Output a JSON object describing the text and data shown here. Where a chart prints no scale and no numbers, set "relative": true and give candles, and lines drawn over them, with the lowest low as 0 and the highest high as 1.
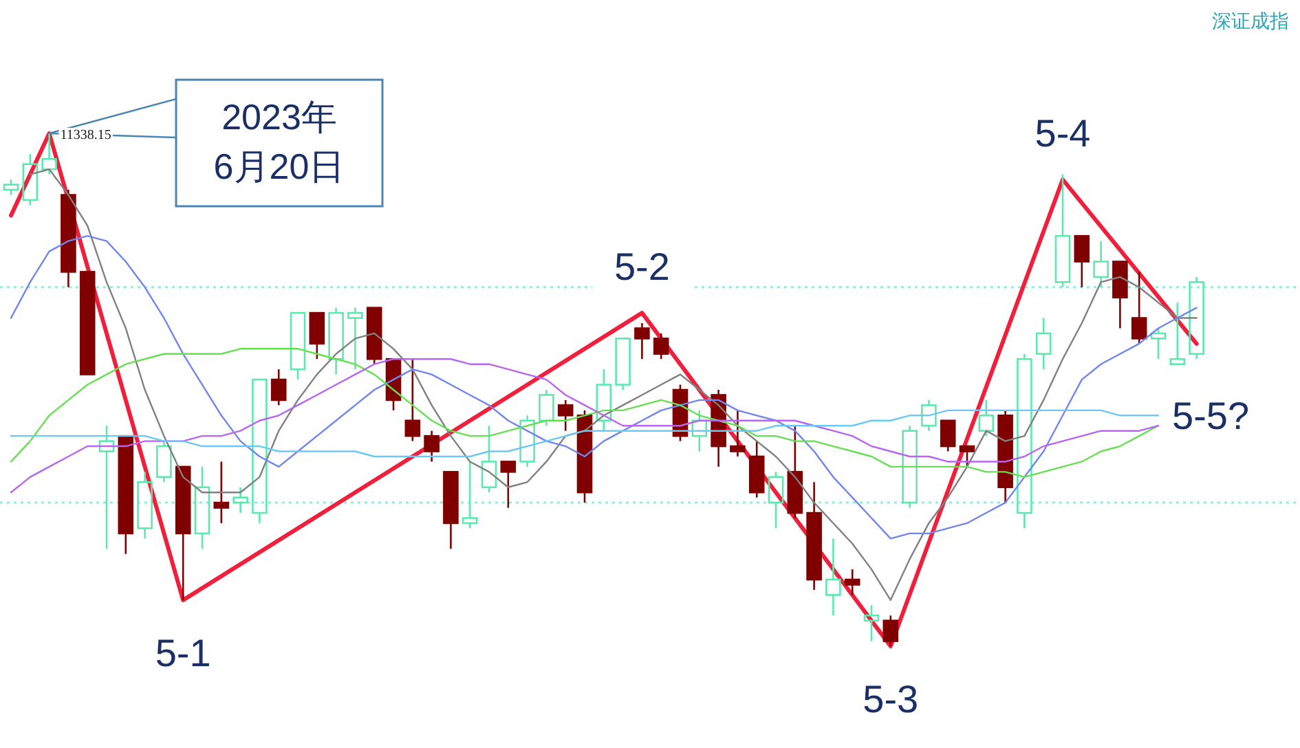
{
  "chart_data": {
    "type": "candlestick",
    "title": "深证成指",
    "relative": true,
    "categories": [
      null,
      null,
      null,
      null,
      null,
      null,
      null,
      null,
      null,
      null,
      null,
      null,
      null,
      null,
      null,
      null,
      null,
      null,
      null,
      null,
      null,
      null,
      null,
      null,
      null,
      null,
      null,
      null,
      null,
      null,
      null,
      null,
      null,
      null,
      null,
      null,
      null,
      null,
      null,
      null,
      null,
      null,
      null,
      null,
      null,
      null,
      null,
      null,
      null,
      null,
      null,
      null,
      null,
      null,
      null,
      null,
      null,
      null,
      null,
      null,
      null,
      null,
      null
    ],
    "ohlc": [
      [
        0.89,
        0.91,
        0.88,
        0.9
      ],
      [
        0.87,
        0.96,
        0.86,
        0.94
      ],
      [
        0.93,
        1.0,
        0.92,
        0.95
      ],
      [
        0.88,
        0.89,
        0.7,
        0.73
      ],
      [
        0.73,
        0.73,
        0.53,
        0.53
      ],
      [
        0.38,
        0.43,
        0.19,
        0.4
      ],
      [
        0.41,
        0.41,
        0.18,
        0.22
      ],
      [
        0.23,
        0.34,
        0.21,
        0.32
      ],
      [
        0.33,
        0.4,
        0.32,
        0.39
      ],
      [
        0.35,
        0.35,
        0.09,
        0.22
      ],
      [
        0.22,
        0.35,
        0.19,
        0.31
      ],
      [
        0.28,
        0.36,
        0.24,
        0.27
      ],
      [
        0.28,
        0.31,
        0.26,
        0.29
      ],
      [
        0.26,
        0.52,
        0.24,
        0.52
      ],
      [
        0.52,
        0.54,
        0.47,
        0.48
      ],
      [
        0.54,
        0.65,
        0.52,
        0.65
      ],
      [
        0.65,
        0.65,
        0.56,
        0.59
      ],
      [
        0.56,
        0.66,
        0.53,
        0.65
      ],
      [
        0.64,
        0.66,
        0.54,
        0.65
      ],
      [
        0.66,
        0.66,
        0.55,
        0.56
      ],
      [
        0.56,
        0.56,
        0.46,
        0.48
      ],
      [
        0.44,
        0.56,
        0.4,
        0.41
      ],
      [
        0.41,
        0.42,
        0.36,
        0.38
      ],
      [
        0.34,
        0.34,
        0.19,
        0.24
      ],
      [
        0.24,
        0.36,
        0.23,
        0.25
      ],
      [
        0.31,
        0.43,
        0.3,
        0.36
      ],
      [
        0.36,
        0.36,
        0.27,
        0.34
      ],
      [
        0.36,
        0.45,
        0.35,
        0.44
      ],
      [
        0.44,
        0.5,
        0.43,
        0.49
      ],
      [
        0.47,
        0.48,
        0.42,
        0.45
      ],
      [
        0.45,
        0.46,
        0.28,
        0.3
      ],
      [
        0.44,
        0.54,
        0.42,
        0.51
      ],
      [
        0.51,
        0.6,
        0.5,
        0.6
      ],
      [
        0.62,
        0.63,
        0.56,
        0.6
      ],
      [
        0.6,
        0.61,
        0.56,
        0.57
      ],
      [
        0.5,
        0.51,
        0.4,
        0.41
      ],
      [
        0.41,
        0.46,
        0.38,
        0.44
      ],
      [
        0.49,
        0.5,
        0.35,
        0.39
      ],
      [
        0.39,
        0.46,
        0.37,
        0.38
      ],
      [
        0.37,
        0.4,
        0.29,
        0.3
      ],
      [
        0.28,
        0.34,
        0.23,
        0.33
      ],
      [
        0.34,
        0.43,
        0.25,
        0.26
      ],
      [
        0.26,
        0.32,
        0.11,
        0.13
      ],
      [
        0.1,
        0.21,
        0.06,
        0.13
      ],
      [
        0.13,
        0.15,
        0.1,
        0.12
      ],
      [
        0.05,
        0.08,
        0.01,
        0.06
      ],
      [
        0.05,
        0.06,
        0.0,
        0.01
      ],
      [
        0.28,
        0.43,
        0.27,
        0.42
      ],
      [
        0.43,
        0.48,
        0.42,
        0.47
      ],
      [
        0.44,
        0.44,
        0.38,
        0.39
      ],
      [
        0.39,
        0.39,
        0.35,
        0.38
      ],
      [
        0.42,
        0.48,
        0.41,
        0.45
      ],
      [
        0.45,
        0.46,
        0.28,
        0.31
      ],
      [
        0.26,
        0.57,
        0.23,
        0.56
      ],
      [
        0.57,
        0.64,
        0.54,
        0.61
      ],
      [
        0.71,
        0.92,
        0.7,
        0.8
      ],
      [
        0.8,
        0.8,
        0.7,
        0.75
      ],
      [
        0.72,
        0.79,
        0.7,
        0.75
      ],
      [
        0.75,
        0.75,
        0.62,
        0.68
      ],
      [
        0.64,
        0.73,
        0.59,
        0.6
      ],
      [
        0.6,
        0.62,
        0.56,
        0.61
      ],
      [
        0.55,
        0.67,
        0.55,
        0.56
      ],
      [
        0.57,
        0.72,
        0.56,
        0.71
      ]
    ],
    "colors": [
      "#5de8b0",
      "#5de8b0",
      "#5de8b0",
      "#800000",
      "#800000",
      "#5de8b0",
      "#800000",
      "#5de8b0",
      "#5de8b0",
      "#800000",
      "#5de8b0",
      "#800000",
      "#5de8b0",
      "#5de8b0",
      "#800000",
      "#5de8b0",
      "#800000",
      "#5de8b0",
      "#5de8b0",
      "#800000",
      "#800000",
      "#800000",
      "#800000",
      "#800000",
      "#5de8b0",
      "#5de8b0",
      "#800000",
      "#5de8b0",
      "#5de8b0",
      "#800000",
      "#800000",
      "#5de8b0",
      "#5de8b0",
      "#800000",
      "#800000",
      "#800000",
      "#5de8b0",
      "#800000",
      "#800000",
      "#800000",
      "#5de8b0",
      "#800000",
      "#800000",
      "#5de8b0",
      "#800000",
      "#5de8b0",
      "#800000",
      "#5de8b0",
      "#5de8b0",
      "#800000",
      "#800000",
      "#5de8b0",
      "#800000",
      "#5de8b0",
      "#5de8b0",
      "#5de8b0",
      "#800000",
      "#5de8b0",
      "#800000",
      "#800000",
      "#5de8b0",
      "#5de8b0",
      "#5de8b0"
    ],
    "value_labels": [
      null,
      null,
      "11338.15",
      null,
      null,
      null,
      null,
      null,
      null,
      null,
      null,
      null,
      null,
      null,
      null,
      null,
      null,
      null,
      null,
      null,
      null,
      null,
      null,
      null,
      null,
      null,
      null,
      null,
      null,
      null,
      null,
      null,
      null,
      null,
      null,
      null,
      null,
      null,
      null,
      null,
      null,
      null,
      null,
      null,
      null,
      null,
      null,
      null,
      null,
      null,
      null,
      null,
      null,
      null,
      null,
      null,
      null,
      null,
      null,
      null,
      null,
      null,
      null
    ],
    "series": [
      {
        "type": "line",
        "color": "#808080",
        "values": [
          null,
          0.92,
          0.93,
          0.88,
          0.82,
          0.71,
          0.62,
          0.5,
          0.41,
          0.33,
          0.3,
          0.3,
          0.3,
          0.33,
          0.42,
          0.48,
          0.53,
          0.57,
          0.6,
          0.61,
          0.58,
          0.54,
          0.47,
          0.41,
          0.36,
          0.34,
          0.31,
          0.32,
          0.36,
          0.41,
          0.42,
          0.45,
          0.47,
          0.49,
          0.51,
          0.53,
          0.5,
          0.47,
          0.43,
          0.4,
          0.37,
          0.33,
          0.28,
          0.24,
          0.2,
          0.15,
          0.09,
          0.17,
          0.24,
          0.29,
          0.35,
          0.42,
          0.4,
          0.41,
          0.48,
          0.56,
          0.63,
          0.71,
          0.72,
          0.7,
          0.67,
          0.64,
          0.64
        ]
      },
      {
        "type": "line",
        "color": "#6f86ee",
        "values": [
          0.64,
          0.71,
          0.77,
          0.79,
          0.8,
          0.79,
          0.75,
          0.7,
          0.64,
          0.57,
          0.51,
          0.45,
          0.4,
          0.37,
          0.35,
          0.38,
          0.41,
          0.44,
          0.47,
          0.5,
          0.52,
          0.54,
          0.53,
          0.51,
          0.49,
          0.47,
          0.44,
          0.42,
          0.4,
          0.39,
          0.37,
          0.4,
          0.42,
          0.44,
          0.46,
          0.47,
          0.48,
          0.48,
          0.46,
          0.45,
          0.44,
          0.42,
          0.38,
          0.33,
          0.29,
          0.25,
          0.21,
          0.22,
          0.22,
          0.23,
          0.24,
          0.26,
          0.28,
          0.33,
          0.38,
          0.45,
          0.52,
          0.55,
          0.57,
          0.59,
          0.62,
          0.64,
          0.66
        ]
      },
      {
        "type": "line",
        "color": "#66e052",
        "values": [
          0.36,
          0.4,
          0.45,
          0.48,
          0.51,
          0.53,
          0.55,
          0.56,
          0.57,
          0.57,
          0.57,
          0.57,
          0.58,
          0.58,
          0.58,
          0.58,
          0.57,
          0.56,
          0.55,
          0.53,
          0.5,
          0.47,
          0.44,
          0.42,
          0.41,
          0.41,
          0.42,
          0.43,
          0.44,
          0.44,
          0.45,
          0.46,
          0.46,
          0.47,
          0.48,
          0.47,
          0.45,
          0.44,
          0.43,
          0.41,
          0.41,
          0.4,
          0.4,
          0.39,
          0.38,
          0.37,
          0.35,
          0.35,
          0.35,
          0.35,
          0.35,
          0.34,
          0.34,
          0.33,
          0.34,
          0.35,
          0.36,
          0.38,
          0.39,
          0.41,
          0.43,
          null,
          null
        ]
      },
      {
        "type": "line",
        "color": "#b866ee",
        "values": [
          0.3,
          0.33,
          0.35,
          0.37,
          0.39,
          0.39,
          0.39,
          0.4,
          0.4,
          0.4,
          0.41,
          0.41,
          0.42,
          0.44,
          0.45,
          0.47,
          0.49,
          0.51,
          0.53,
          0.55,
          0.56,
          0.56,
          0.56,
          0.56,
          0.55,
          0.55,
          0.54,
          0.53,
          0.52,
          0.49,
          0.47,
          0.45,
          0.43,
          0.43,
          0.43,
          0.43,
          0.44,
          0.44,
          0.44,
          0.44,
          0.44,
          0.44,
          0.43,
          0.42,
          0.41,
          0.39,
          0.38,
          0.37,
          0.37,
          0.36,
          0.36,
          0.36,
          0.36,
          0.37,
          0.39,
          0.4,
          0.41,
          0.42,
          0.42,
          0.42,
          0.43,
          null,
          null
        ]
      },
      {
        "type": "line",
        "color": "#6cc8f5",
        "values": [
          0.41,
          0.41,
          0.41,
          0.41,
          0.41,
          0.41,
          0.41,
          0.41,
          0.4,
          0.4,
          0.39,
          0.39,
          0.39,
          0.39,
          0.38,
          0.38,
          0.38,
          0.38,
          0.38,
          0.37,
          0.37,
          0.37,
          0.37,
          0.37,
          0.37,
          0.38,
          0.38,
          0.39,
          0.4,
          0.41,
          0.42,
          0.42,
          0.42,
          0.42,
          0.42,
          0.42,
          0.42,
          0.42,
          0.42,
          0.42,
          0.43,
          0.43,
          0.43,
          0.43,
          0.43,
          0.44,
          0.44,
          0.45,
          0.45,
          0.46,
          0.46,
          0.46,
          0.46,
          0.46,
          0.46,
          0.46,
          0.46,
          0.46,
          0.45,
          0.45,
          0.45,
          null,
          null
        ]
      },
      {
        "type": "line",
        "color": "#f0203c",
        "values": [
          0.84,
          null,
          1.0,
          null,
          null,
          null,
          null,
          null,
          null,
          0.09,
          null,
          null,
          null,
          null,
          null,
          null,
          null,
          null,
          null,
          null,
          null,
          null,
          null,
          null,
          null,
          null,
          null,
          null,
          null,
          null,
          null,
          null,
          null,
          0.65,
          null,
          null,
          null,
          null,
          null,
          null,
          null,
          null,
          null,
          null,
          null,
          null,
          0.0,
          null,
          null,
          null,
          null,
          null,
          null,
          null,
          null,
          0.91,
          null,
          null,
          null,
          null,
          null,
          null,
          0.59
        ]
      }
    ],
    "ref_lines": [
      {
        "axis": "y",
        "value": 0.7,
        "color": "#8ceedd",
        "line_style": "dotted"
      },
      {
        "axis": "y",
        "value": 0.28,
        "color": "#8ceedd",
        "line_style": "dotted"
      }
    ],
    "annotations": [
      "2023年\n6月20日",
      "5-1",
      "5-2",
      "5-3",
      "5-4",
      "5-5?"
    ]
  }
}
